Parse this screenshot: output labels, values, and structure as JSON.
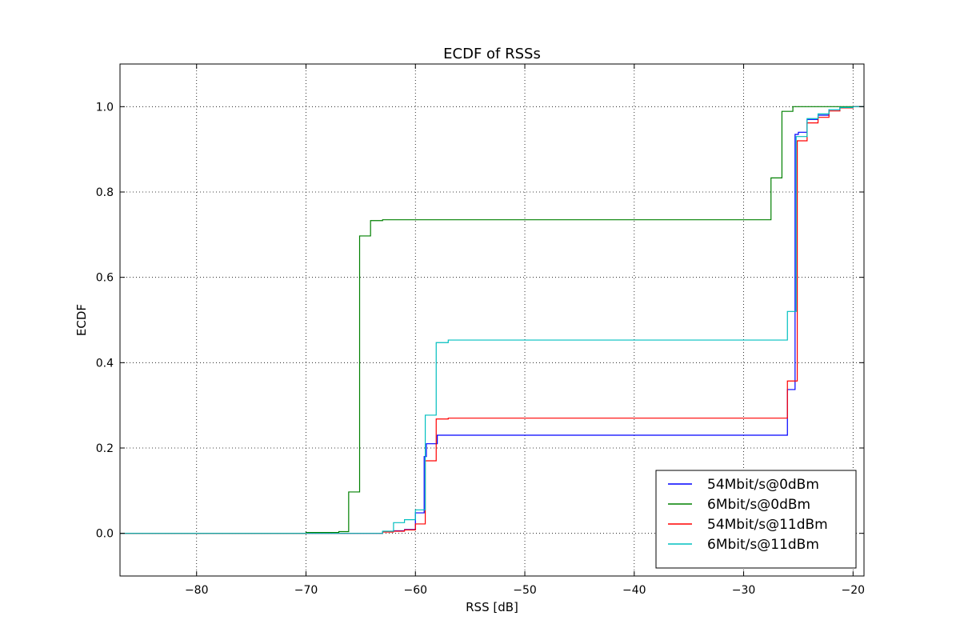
{
  "chart_data": {
    "type": "line",
    "step": true,
    "title": "ECDF of RSSs",
    "xlabel": "RSS [dB]",
    "ylabel": "ECDF",
    "xlim": [
      -87,
      -19
    ],
    "ylim": [
      -0.1,
      1.1
    ],
    "xticks": [
      -80,
      -70,
      -60,
      -50,
      -40,
      -30,
      -20
    ],
    "xtick_labels": [
      "−80",
      "−70",
      "−60",
      "−50",
      "−40",
      "−30",
      "−20"
    ],
    "yticks": [
      0.0,
      0.2,
      0.4,
      0.6,
      0.8,
      1.0
    ],
    "ytick_labels": [
      "0.0",
      "0.2",
      "0.4",
      "0.6",
      "0.8",
      "1.0"
    ],
    "grid": true,
    "legend_position": "bottom-right",
    "series": [
      {
        "name": "54Mbit/s@0dBm",
        "color": "#0000ff",
        "x": [
          -87,
          -63,
          -62,
          -61,
          -60,
          -59.2,
          -59,
          -58,
          -57,
          -26,
          -25.3,
          -25,
          -24.2,
          -23.2,
          -22.2,
          -21.2,
          -20,
          -19
        ],
        "y": [
          0.0,
          0.004,
          0.006,
          0.009,
          0.048,
          0.18,
          0.21,
          0.23,
          0.23,
          0.337,
          0.935,
          0.94,
          0.97,
          0.98,
          0.993,
          0.998,
          1.0,
          1.0
        ]
      },
      {
        "name": "6Mbit/s@0dBm",
        "color": "#008000",
        "x": [
          -87,
          -70,
          -67,
          -66.1,
          -65.1,
          -64.1,
          -63,
          -28.5,
          -27.5,
          -26.5,
          -25.5,
          -19
        ],
        "y": [
          0.0,
          0.002,
          0.004,
          0.097,
          0.697,
          0.733,
          0.735,
          0.735,
          0.833,
          0.989,
          1.0,
          1.0
        ]
      },
      {
        "name": "54Mbit/s@11dBm",
        "color": "#ff0000",
        "x": [
          -87,
          -63,
          -62,
          -61,
          -60,
          -59.1,
          -58.1,
          -57,
          -26,
          -25.1,
          -24.2,
          -23.2,
          -22.2,
          -21.2,
          -20,
          -19
        ],
        "y": [
          0.0,
          0.003,
          0.005,
          0.008,
          0.022,
          0.17,
          0.268,
          0.27,
          0.357,
          0.92,
          0.962,
          0.975,
          0.99,
          0.997,
          1.0,
          1.0
        ]
      },
      {
        "name": "6Mbit/s@11dBm",
        "color": "#00bfbf",
        "x": [
          -87,
          -63,
          -62,
          -61,
          -60,
          -59.1,
          -58.1,
          -57,
          -26,
          -25.2,
          -24.2,
          -23.2,
          -22.2,
          -21.2,
          -20,
          -19
        ],
        "y": [
          0.0,
          0.005,
          0.025,
          0.032,
          0.055,
          0.277,
          0.447,
          0.453,
          0.52,
          0.93,
          0.972,
          0.983,
          0.993,
          0.998,
          1.0,
          1.0
        ]
      }
    ]
  }
}
